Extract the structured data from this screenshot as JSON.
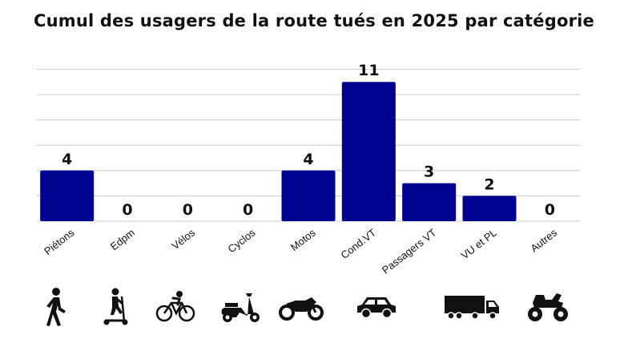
{
  "title": "Cumul des usagers de la route tués en 2025 par catégorie",
  "colors": {
    "bar": "#000091",
    "grid": "#c9c9c9",
    "text": "#111111"
  },
  "chart_data": {
    "type": "bar",
    "title": "Cumul des usagers de la route tués en 2025 par catégorie",
    "xlabel": "",
    "ylabel": "",
    "categories": [
      "Piétons",
      "Edpm",
      "Vélos",
      "Cyclos",
      "Motos",
      "Cond.VT",
      "Passagers VT",
      "VU et PL",
      "Autres"
    ],
    "values": [
      4,
      0,
      0,
      0,
      4,
      11,
      3,
      2,
      0
    ],
    "ylim": [
      0,
      12
    ],
    "grid": true,
    "data_labels": [
      "4",
      "0",
      "0",
      "0",
      "4",
      "11",
      "3",
      "2",
      "0"
    ]
  },
  "icons": [
    "pedestrian-icon",
    "scooter-icon",
    "bicycle-icon",
    "moped-icon",
    "motorcycle-icon",
    "car-icon",
    "truck-icon",
    "quad-icon",
    "truck-icon"
  ]
}
